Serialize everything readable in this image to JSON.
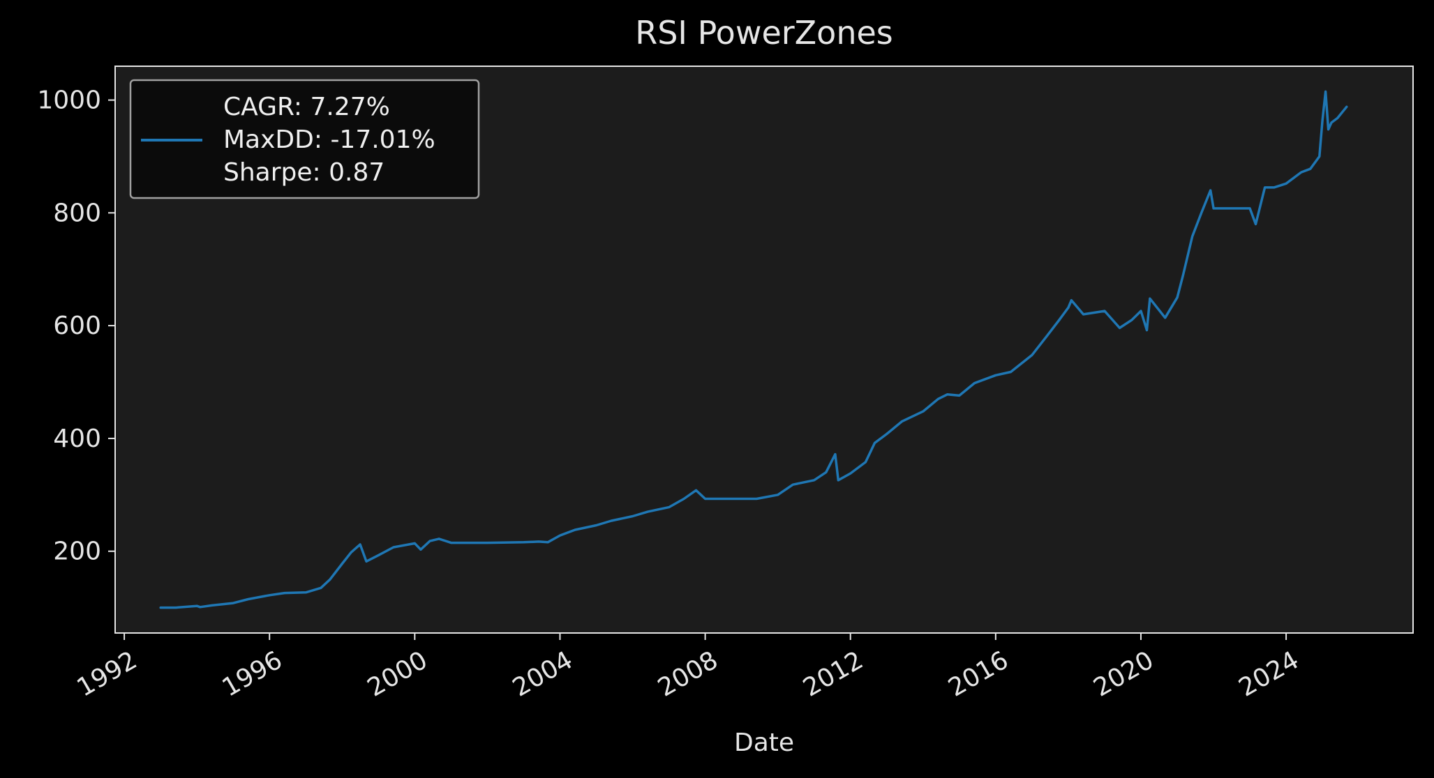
{
  "chart_data": {
    "type": "line",
    "title": "RSI PowerZones",
    "xlabel": "Date",
    "ylabel": "",
    "x_axis_type": "date",
    "xlim": [
      "1991-10-01",
      "2027-07-01"
    ],
    "ylim": [
      55,
      1060
    ],
    "grid": false,
    "x_ticks": [
      "1992-01-01",
      "1996-01-01",
      "2000-01-01",
      "2004-01-01",
      "2008-01-01",
      "2012-01-01",
      "2016-01-01",
      "2020-01-01",
      "2024-01-01"
    ],
    "x_tick_labels": [
      "1992",
      "1996",
      "2000",
      "2004",
      "2008",
      "2012",
      "2016",
      "2020",
      "2024"
    ],
    "y_ticks": [
      200,
      400,
      600,
      800,
      1000
    ],
    "y_tick_labels": [
      "200",
      "400",
      "600",
      "800",
      "1000"
    ],
    "legend": {
      "position": "top-left",
      "lines": [
        "CAGR: 7.27%",
        "MaxDD: -17.01%",
        "Sharpe: 0.87"
      ]
    },
    "colors": {
      "figure_background": "#000000",
      "axes_background": "#1c1c1c",
      "spine": "#e6e6e6",
      "text": "#e6e6e6",
      "line": "#1f77b4",
      "legend_background": "#0a0a0a",
      "legend_border": "#a0a0a0"
    },
    "series": [
      {
        "name": "",
        "x": [
          "1993-01-01",
          "1993-06-01",
          "1994-01-01",
          "1994-02-01",
          "1994-06-01",
          "1995-01-01",
          "1995-06-01",
          "1996-01-01",
          "1996-06-01",
          "1997-01-01",
          "1997-06-01",
          "1997-09-01",
          "1998-01-01",
          "1998-04-01",
          "1998-07-01",
          "1998-09-01",
          "1999-01-01",
          "1999-06-01",
          "2000-01-01",
          "2000-03-01",
          "2000-06-01",
          "2000-09-01",
          "2001-01-01",
          "2002-01-01",
          "2003-01-01",
          "2003-06-01",
          "2003-09-01",
          "2004-01-01",
          "2004-06-01",
          "2005-01-01",
          "2005-06-01",
          "2006-01-01",
          "2006-06-01",
          "2007-01-01",
          "2007-06-01",
          "2007-10-01",
          "2008-01-01",
          "2009-01-01",
          "2009-06-01",
          "2010-01-01",
          "2010-06-01",
          "2011-01-01",
          "2011-05-01",
          "2011-08-01",
          "2011-09-01",
          "2012-01-01",
          "2012-06-01",
          "2012-09-01",
          "2013-01-01",
          "2013-06-01",
          "2014-01-01",
          "2014-06-01",
          "2014-09-01",
          "2015-01-01",
          "2015-06-01",
          "2016-01-01",
          "2016-06-01",
          "2017-01-01",
          "2017-06-01",
          "2017-10-01",
          "2018-01-01",
          "2018-02-01",
          "2018-06-01",
          "2019-01-01",
          "2019-06-01",
          "2019-10-01",
          "2020-01-01",
          "2020-03-01",
          "2020-04-01",
          "2020-09-01",
          "2021-01-01",
          "2021-03-01",
          "2021-06-01",
          "2021-09-01",
          "2021-12-01",
          "2022-01-01",
          "2022-06-01",
          "2023-01-01",
          "2023-03-01",
          "2023-06-01",
          "2023-09-01",
          "2024-01-01",
          "2024-06-01",
          "2024-09-01",
          "2024-12-01",
          "2025-01-01",
          "2025-02-01",
          "2025-03-01",
          "2025-04-01",
          "2025-06-01",
          "2025-09-01"
        ],
        "values": [
          100,
          100,
          103,
          101,
          104,
          108,
          115,
          122,
          126,
          127,
          135,
          150,
          178,
          198,
          212,
          182,
          193,
          207,
          214,
          203,
          218,
          222,
          215,
          215,
          216,
          217,
          216,
          228,
          238,
          246,
          254,
          262,
          270,
          278,
          293,
          308,
          293,
          293,
          293,
          300,
          318,
          326,
          340,
          372,
          326,
          338,
          358,
          392,
          408,
          430,
          448,
          470,
          478,
          476,
          498,
          512,
          518,
          548,
          582,
          610,
          632,
          645,
          620,
          626,
          596,
          610,
          626,
          592,
          648,
          614,
          650,
          690,
          758,
          800,
          840,
          808,
          808,
          808,
          780,
          845,
          845,
          852,
          872,
          878,
          900,
          965,
          1015,
          948,
          960,
          968,
          988
        ]
      }
    ]
  }
}
